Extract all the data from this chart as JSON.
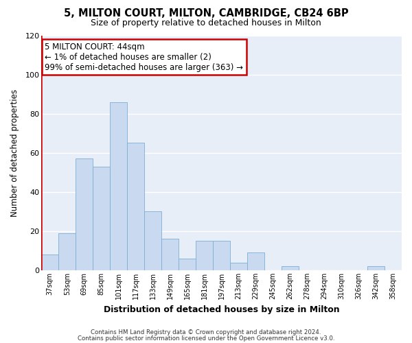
{
  "title": "5, MILTON COURT, MILTON, CAMBRIDGE, CB24 6BP",
  "subtitle": "Size of property relative to detached houses in Milton",
  "xlabel": "Distribution of detached houses by size in Milton",
  "ylabel": "Number of detached properties",
  "bar_color": "#c9d9f0",
  "bar_edge_color": "#7bafd4",
  "background_color": "#ffffff",
  "plot_bg_color": "#e8eef8",
  "grid_color": "#ffffff",
  "annotation_box_color": "#cc0000",
  "annotation_line1": "5 MILTON COURT: 44sqm",
  "annotation_line2": "← 1% of detached houses are smaller (2)",
  "annotation_line3": "99% of semi-detached houses are larger (363) →",
  "categories": [
    "37sqm",
    "53sqm",
    "69sqm",
    "85sqm",
    "101sqm",
    "117sqm",
    "133sqm",
    "149sqm",
    "165sqm",
    "181sqm",
    "197sqm",
    "213sqm",
    "229sqm",
    "245sqm",
    "262sqm",
    "278sqm",
    "294sqm",
    "310sqm",
    "326sqm",
    "342sqm",
    "358sqm"
  ],
  "values": [
    8,
    19,
    57,
    53,
    86,
    65,
    30,
    16,
    6,
    15,
    15,
    4,
    9,
    0,
    2,
    0,
    0,
    0,
    0,
    2,
    0
  ],
  "ylim": [
    0,
    120
  ],
  "yticks": [
    0,
    20,
    40,
    60,
    80,
    100,
    120
  ],
  "footer1": "Contains HM Land Registry data © Crown copyright and database right 2024.",
  "footer2": "Contains public sector information licensed under the Open Government Licence v3.0."
}
